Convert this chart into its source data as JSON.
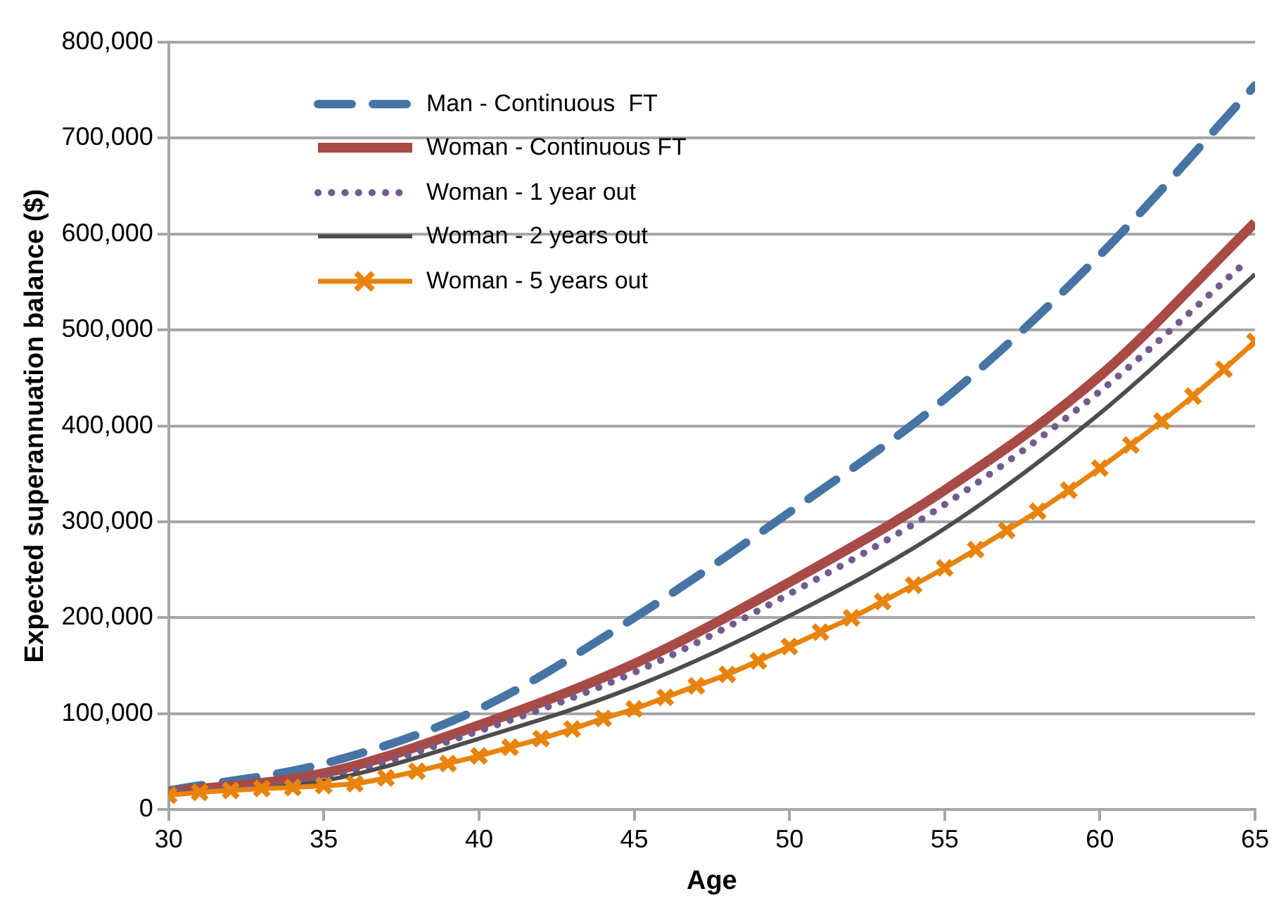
{
  "chart_data": {
    "type": "line",
    "xlabel": "Age",
    "ylabel": "Expected superannuation balance ($)",
    "xlim": [
      30,
      65
    ],
    "xticks": [
      30,
      35,
      40,
      45,
      50,
      55,
      60,
      65
    ],
    "ylim": [
      0,
      800000
    ],
    "yticks": [
      0,
      {
        "value": 100000,
        "label": "100,000"
      },
      {
        "value": 200000,
        "label": "200,000"
      },
      {
        "value": 300000,
        "label": "300,000"
      },
      {
        "value": 400000,
        "label": "400,000"
      },
      {
        "value": 500000,
        "label": "500,000"
      },
      {
        "value": 600000,
        "label": "600,000"
      },
      {
        "value": 700000,
        "label": "700,000"
      },
      {
        "value": 800000,
        "label": "800,000"
      }
    ],
    "grid": "y",
    "legend": "top left",
    "series": [
      {
        "name": "Man - Continuous  FT",
        "color": "#4674a4",
        "line_style": "dashed",
        "marker": "none",
        "x": [
          30,
          35,
          40,
          45,
          50,
          55,
          60,
          65
        ],
        "values": [
          20000,
          48000,
          105000,
          200000,
          310000,
          428000,
          578000,
          755000
        ]
      },
      {
        "name": "Woman - Continuous FT",
        "color": "#a84b47",
        "line_style": "solid",
        "marker": "none",
        "x": [
          30,
          35,
          40,
          45,
          50,
          55,
          60,
          65
        ],
        "values": [
          18000,
          38000,
          88000,
          152000,
          237000,
          333000,
          452000,
          612000
        ]
      },
      {
        "name": "Woman - 1 year out",
        "color": "#735b8e",
        "line_style": "dotted",
        "marker": "none",
        "x": [
          30,
          35,
          40,
          45,
          50,
          55,
          60,
          64.5
        ],
        "values": [
          17000,
          33000,
          82000,
          143000,
          225000,
          318000,
          436000,
          565000
        ]
      },
      {
        "name": "Woman - 2 years out",
        "color": "#4d4d4d",
        "line_style": "solid",
        "marker": "none",
        "x": [
          30,
          35,
          40,
          45,
          50,
          55,
          60,
          65
        ],
        "values": [
          16000,
          30000,
          74000,
          128000,
          202000,
          293000,
          413000,
          558000
        ]
      },
      {
        "name": "Woman - 5 years out",
        "color": "#e8830c",
        "line_style": "solid",
        "marker": "cross",
        "x": [
          30,
          31,
          32,
          33,
          34,
          35,
          36,
          37,
          38,
          39,
          40,
          41,
          42,
          43,
          44,
          45,
          46,
          47,
          48,
          49,
          50,
          51,
          52,
          53,
          54,
          55,
          56,
          57,
          58,
          59,
          60,
          61,
          62,
          63,
          64,
          65
        ],
        "values": [
          15000,
          18000,
          20000,
          22000,
          23000,
          25000,
          27000,
          33000,
          40000,
          48000,
          56000,
          65000,
          74000,
          84000,
          95000,
          105000,
          117000,
          129000,
          141000,
          155000,
          170000,
          185000,
          200000,
          217000,
          234000,
          252000,
          271000,
          291000,
          311000,
          333000,
          356000,
          380000,
          405000,
          431000,
          459000,
          488000
        ]
      }
    ]
  }
}
